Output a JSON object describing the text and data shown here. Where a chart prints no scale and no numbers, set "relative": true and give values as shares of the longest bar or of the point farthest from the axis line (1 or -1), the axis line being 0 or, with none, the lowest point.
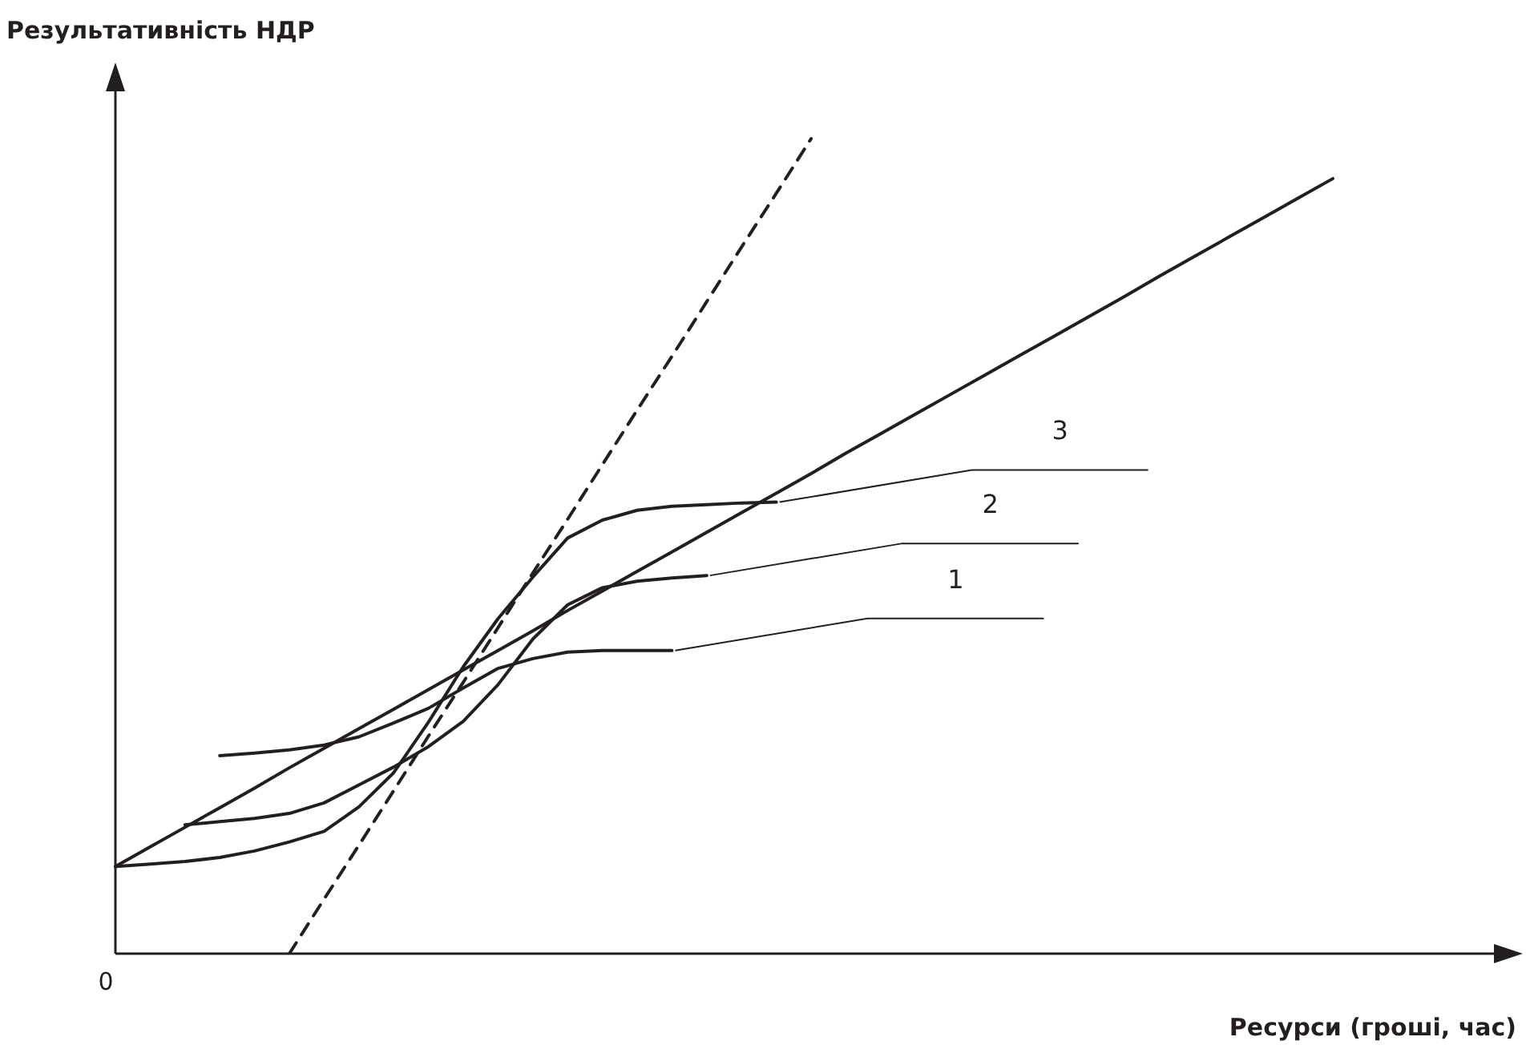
{
  "chart_data": {
    "type": "line",
    "relative": true,
    "ylabel": "Результативність НДР",
    "xlabel": "Ресурси (гроші, час)",
    "annotations": [
      "0"
    ],
    "grid": false,
    "legend": false,
    "marker": "none",
    "categories": [
      null,
      null,
      null,
      null,
      null,
      null,
      null,
      null,
      null,
      null,
      null,
      null,
      null,
      null,
      null,
      null,
      null,
      null,
      null,
      null,
      null,
      null,
      null,
      null,
      null,
      null,
      null,
      null,
      null,
      null,
      null,
      null,
      null,
      null,
      null,
      null,
      null,
      null,
      null,
      null,
      null
    ],
    "series": [
      {
        "name": "1",
        "color": "#231f20",
        "values": [
          null,
          null,
          null,
          0.243,
          0.246,
          0.25,
          0.256,
          0.266,
          0.283,
          0.301,
          0.326,
          0.35,
          0.362,
          0.37,
          0.372,
          0.372,
          0.372,
          null,
          null,
          null,
          null,
          null,
          null,
          null,
          null,
          null,
          null,
          null,
          null,
          null,
          null,
          null,
          null,
          null,
          null,
          null,
          null,
          null,
          null,
          null,
          null
        ]
      },
      {
        "name": "2",
        "color": "#231f20",
        "values": [
          null,
          null,
          0.158,
          0.162,
          0.166,
          0.172,
          0.185,
          0.207,
          0.229,
          0.254,
          0.285,
          0.33,
          0.386,
          0.428,
          0.449,
          0.457,
          0.461,
          0.464,
          null,
          null,
          null,
          null,
          null,
          null,
          null,
          null,
          null,
          null,
          null,
          null,
          null,
          null,
          null,
          null,
          null,
          null,
          null,
          null,
          null,
          null,
          null
        ]
      },
      {
        "name": "3",
        "color": "#231f20",
        "values": [
          0.107,
          0.11,
          0.113,
          0.118,
          0.126,
          0.137,
          0.15,
          0.18,
          0.222,
          0.284,
          0.352,
          0.411,
          0.462,
          0.51,
          0.532,
          0.544,
          0.549,
          0.551,
          0.553,
          0.554,
          null,
          null,
          null,
          null,
          null,
          null,
          null,
          null,
          null,
          null,
          null,
          null,
          null,
          null,
          null,
          null,
          null,
          null,
          null,
          null,
          null
        ]
      },
      {
        "color": "#231f20",
        "values": [
          0.107,
          0.131,
          0.155,
          0.179,
          0.203,
          0.228,
          0.252,
          0.276,
          0.3,
          0.324,
          0.348,
          0.372,
          0.396,
          0.421,
          0.445,
          0.469,
          0.493,
          0.517,
          0.541,
          0.565,
          0.589,
          0.614,
          0.638,
          0.662,
          0.686,
          0.71,
          0.734,
          0.758,
          0.782,
          0.806,
          0.831,
          0.855,
          0.879,
          0.903,
          0.927,
          0.951,
          null,
          null,
          null,
          null,
          null
        ]
      },
      {
        "color": "#231f20",
        "line_style": "dashed",
        "values": [
          null,
          null,
          null,
          null,
          null,
          0,
          0.067,
          0.133,
          0.2,
          0.267,
          0.333,
          0.4,
          0.467,
          0.533,
          0.6,
          0.667,
          0.733,
          0.8,
          0.867,
          0.933,
          1,
          null,
          null,
          null,
          null,
          null,
          null,
          null,
          null,
          null,
          null,
          null,
          null,
          null,
          null,
          null,
          null,
          null,
          null,
          null,
          null
        ]
      }
    ]
  }
}
